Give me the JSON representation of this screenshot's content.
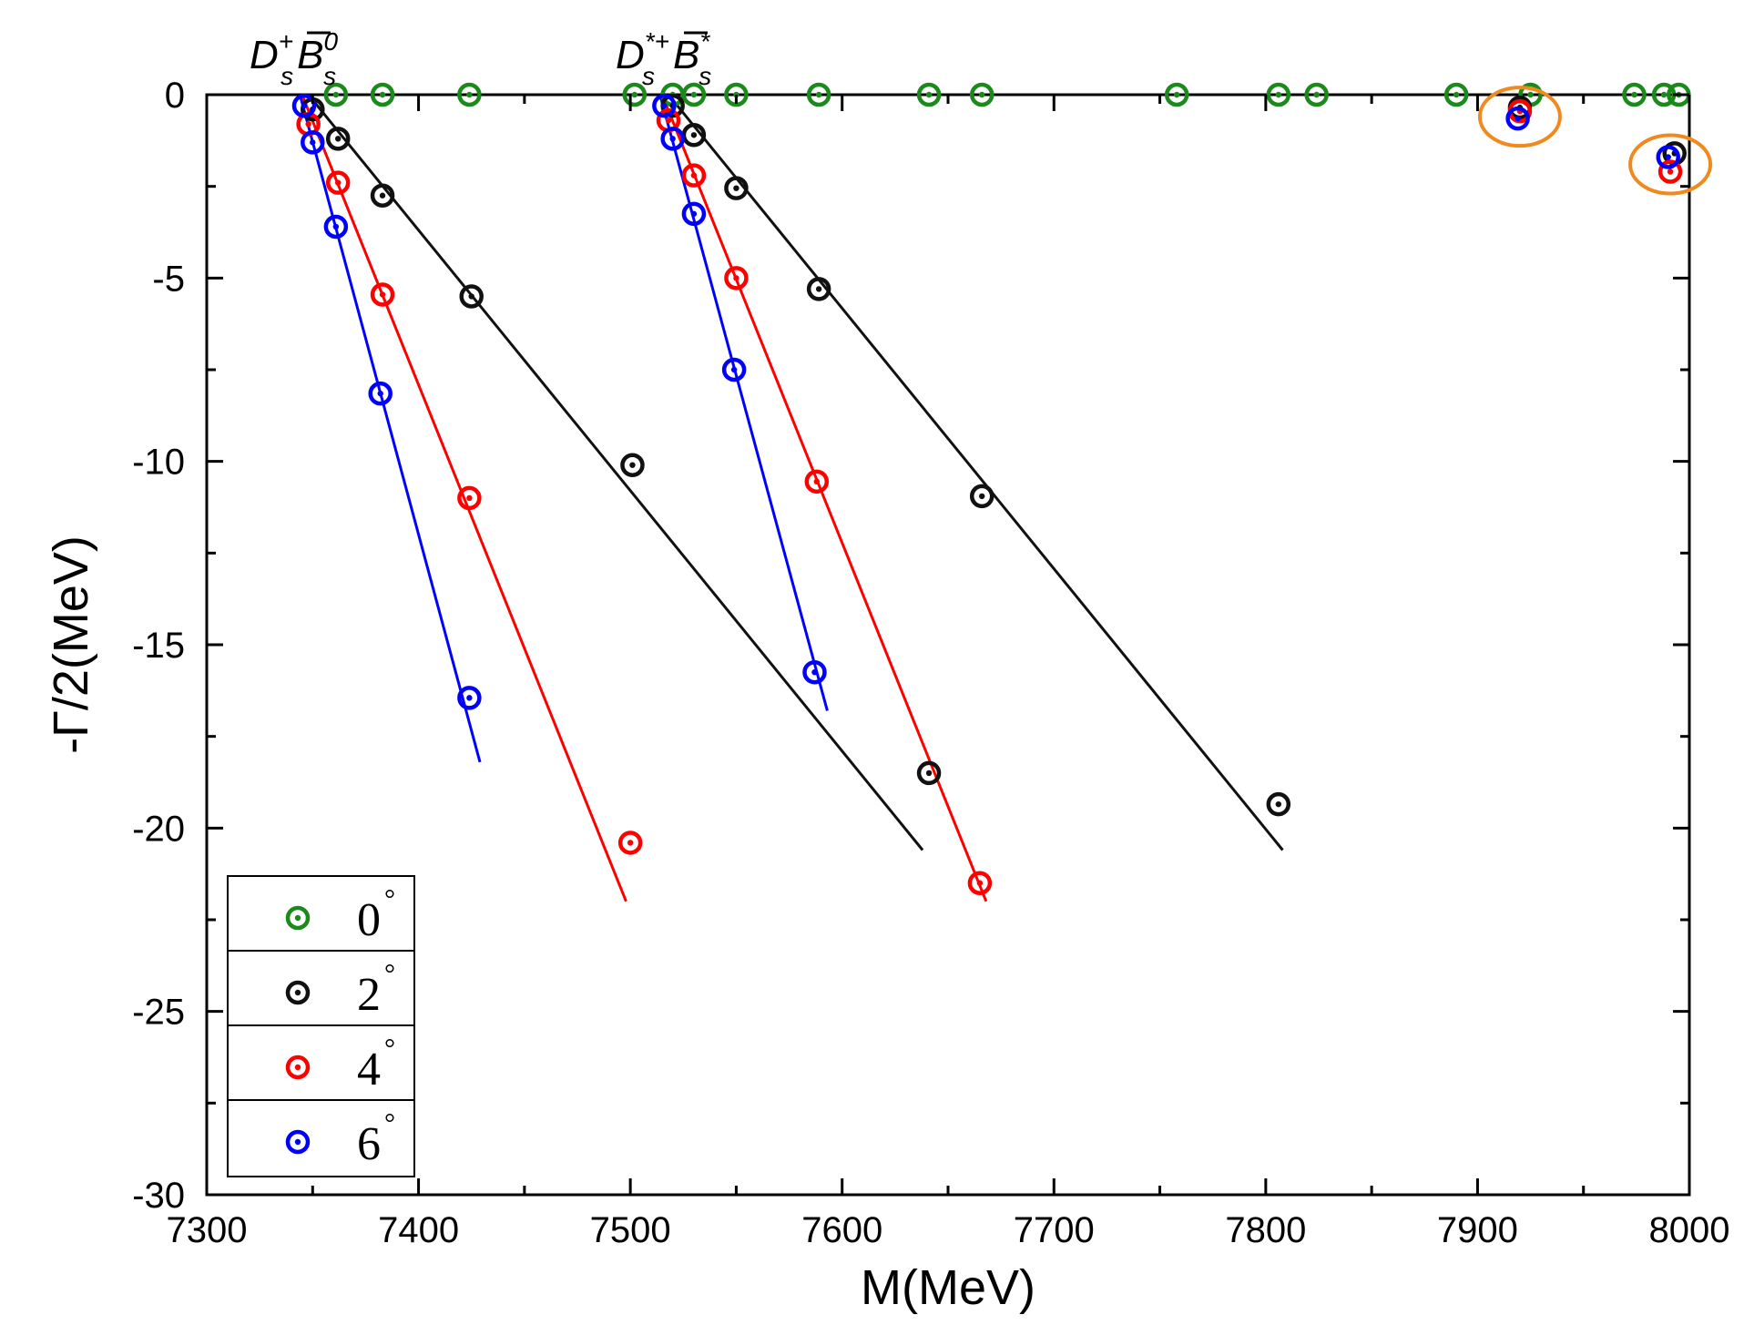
{
  "chart_data": {
    "type": "scatter",
    "title": "",
    "xlabel": "M(MeV)",
    "ylabel": "-Γ/2(MeV)",
    "xlim": [
      7300,
      8000
    ],
    "ylim": [
      -30,
      0
    ],
    "xticks": [
      7300,
      7400,
      7500,
      7600,
      7700,
      7800,
      7900,
      8000
    ],
    "yticks": [
      0,
      -5,
      -10,
      -15,
      -20,
      -25,
      -30
    ],
    "threshold_labels": [
      {
        "base": "D",
        "sup": "+",
        "sub": "s",
        "partner": "B",
        "partner_sup": "0",
        "partner_sub": "s",
        "x": 7335
      },
      {
        "base": "D",
        "sup": "*+",
        "sub": "s",
        "partner": "B",
        "partner_sup": "*",
        "partner_sub": "s",
        "x": 7508
      }
    ],
    "legend": {
      "placement": "bottom-left",
      "items": [
        {
          "label": "0",
          "unit": "°",
          "color": "#1a8a1a"
        },
        {
          "label": "2",
          "unit": "°",
          "color": "#111111"
        },
        {
          "label": "4",
          "unit": "°",
          "color": "#ff0000"
        },
        {
          "label": "6",
          "unit": "°",
          "color": "#0000ff"
        }
      ]
    },
    "series": [
      {
        "name": "0°",
        "color": "#1a8a1a",
        "points": [
          [
            7361,
            0
          ],
          [
            7383,
            0
          ],
          [
            7424,
            0
          ],
          [
            7502,
            0
          ],
          [
            7520,
            0
          ],
          [
            7530,
            0
          ],
          [
            7550,
            0
          ],
          [
            7589,
            0
          ],
          [
            7641,
            0
          ],
          [
            7666,
            0
          ],
          [
            7758,
            0
          ],
          [
            7806,
            0
          ],
          [
            7824,
            0
          ],
          [
            7890,
            0
          ],
          [
            7925,
            0
          ],
          [
            7974,
            0
          ],
          [
            7988,
            0
          ],
          [
            7995,
            0
          ]
        ]
      },
      {
        "name": "2°",
        "color": "#111111",
        "points": [
          [
            7350,
            -0.4
          ],
          [
            7362,
            -1.2
          ],
          [
            7383,
            -2.75
          ],
          [
            7425,
            -5.5
          ],
          [
            7501,
            -10.1
          ],
          [
            7641,
            -18.5
          ],
          [
            7520,
            -0.3
          ],
          [
            7530,
            -1.1
          ],
          [
            7550,
            -2.55
          ],
          [
            7589,
            -5.3
          ],
          [
            7666,
            -10.95
          ],
          [
            7806,
            -19.35
          ],
          [
            7920,
            -0.35
          ],
          [
            7993,
            -1.6
          ]
        ],
        "lines": [
          [
            [
              7348,
              0
            ],
            [
              7638,
              -20.6
            ]
          ],
          [
            [
              7518,
              0
            ],
            [
              7808,
              -20.6
            ]
          ]
        ]
      },
      {
        "name": "4°",
        "color": "#ff0000",
        "points": [
          [
            7348,
            -0.8
          ],
          [
            7362,
            -2.4
          ],
          [
            7383,
            -5.45
          ],
          [
            7424,
            -11.0
          ],
          [
            7500,
            -20.4
          ],
          [
            7518,
            -0.7
          ],
          [
            7530,
            -2.2
          ],
          [
            7550,
            -5.0
          ],
          [
            7588,
            -10.55
          ],
          [
            7665,
            -21.5
          ],
          [
            7920,
            -0.45
          ],
          [
            7991,
            -2.1
          ]
        ],
        "lines": [
          [
            [
              7345,
              0
            ],
            [
              7498,
              -22.0
            ]
          ],
          [
            [
              7515,
              0
            ],
            [
              7668,
              -22.0
            ]
          ]
        ]
      },
      {
        "name": "6°",
        "color": "#0000ff",
        "points": [
          [
            7346,
            -0.3
          ],
          [
            7350,
            -1.3
          ],
          [
            7361,
            -3.6
          ],
          [
            7382,
            -8.15
          ],
          [
            7424,
            -16.45
          ],
          [
            7516,
            -0.3
          ],
          [
            7520,
            -1.2
          ],
          [
            7530,
            -3.25
          ],
          [
            7549,
            -7.5
          ],
          [
            7587,
            -15.75
          ],
          [
            7919,
            -0.65
          ],
          [
            7990,
            -1.7
          ]
        ],
        "lines": [
          [
            [
              7344,
              0
            ],
            [
              7429,
              -18.2
            ]
          ],
          [
            [
              7514,
              0
            ],
            [
              7593,
              -16.8
            ]
          ]
        ]
      }
    ],
    "highlight_circles": [
      {
        "x": 7920,
        "y": -0.6,
        "color": "#f08a1e"
      },
      {
        "x": 7991,
        "y": -1.9,
        "color": "#f08a1e"
      }
    ]
  }
}
